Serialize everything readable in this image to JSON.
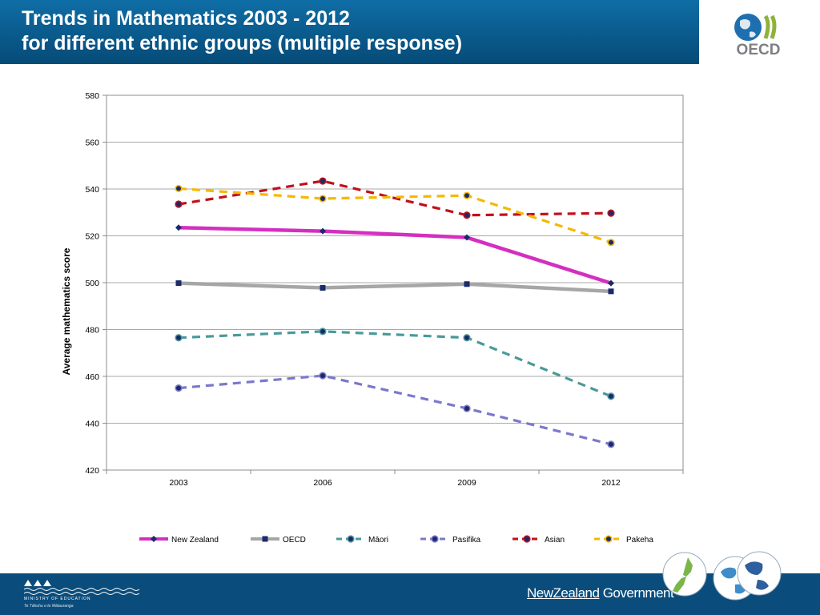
{
  "header": {
    "title_line1": "Trends in Mathematics 2003 - 2012",
    "title_line2": "for different ethnic groups (multiple response)",
    "background_color": "#0a5a8c"
  },
  "logo": {
    "text": "OECD",
    "icon": "globe-icon"
  },
  "chart_data": {
    "type": "line",
    "title": "",
    "xlabel": "",
    "ylabel": "Average mathematics score",
    "categories": [
      "2003",
      "2006",
      "2009",
      "2012"
    ],
    "ylim": [
      420,
      580
    ],
    "yticks": [
      "420",
      "440",
      "460",
      "480",
      "500",
      "520",
      "540",
      "560",
      "580"
    ],
    "grid": true,
    "legend_position": "bottom",
    "series": [
      {
        "name": "New Zealand",
        "values": [
          523.5,
          522,
          519.3,
          499.8
        ],
        "color": "#d42fc0",
        "style": "solid",
        "marker": "diamond"
      },
      {
        "name": "OECD",
        "values": [
          499.8,
          497.8,
          499.4,
          496.3
        ],
        "color": "#a6a6a6",
        "style": "solid",
        "marker": "square"
      },
      {
        "name": "Māori",
        "values": [
          476.5,
          479.2,
          476.5,
          451.5
        ],
        "color": "#4a9a9a",
        "style": "dashed",
        "marker": "circle"
      },
      {
        "name": "Pasifika",
        "values": [
          455,
          460.3,
          446.3,
          431
        ],
        "color": "#7b78cc",
        "style": "dashed",
        "marker": "circle"
      },
      {
        "name": "Asian",
        "values": [
          533.5,
          543.4,
          528.8,
          529.7
        ],
        "color": "#c0101a",
        "style": "dashed",
        "marker": "circle"
      },
      {
        "name": "Pakeha",
        "values": [
          540.2,
          535.9,
          537.2,
          517.2
        ],
        "color": "#f5b800",
        "style": "dashed",
        "marker": "circle"
      }
    ]
  },
  "footer": {
    "ministry_name": "MINISTRY OF EDUCATION",
    "ministry_sub": "Te Tāhuhu o te Mātauranga",
    "government_new": "New",
    "government_zealand": "Zealand",
    "government_word": "Government",
    "badge_icons": [
      "nz-map-icon",
      "globe-icon",
      "globe-icon"
    ]
  }
}
